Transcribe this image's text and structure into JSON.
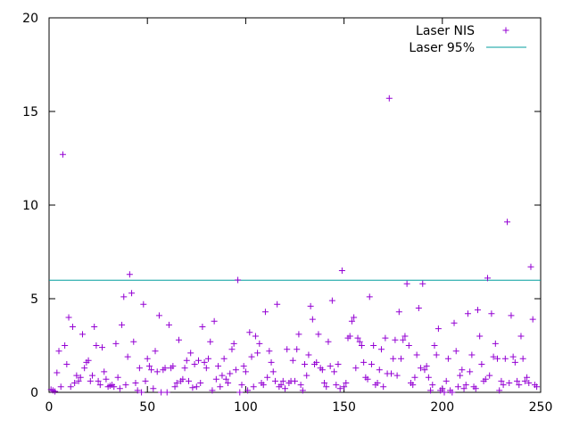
{
  "chart_data": {
    "type": "scatter",
    "title": "",
    "xlabel": "",
    "ylabel": "",
    "xlim": [
      0,
      250
    ],
    "ylim": [
      0,
      20
    ],
    "x_ticks": [
      0,
      50,
      100,
      150,
      200,
      250
    ],
    "y_ticks": [
      0,
      5,
      10,
      15,
      20
    ],
    "grid": false,
    "legend_position": "top-right",
    "series": [
      {
        "name": "Laser NIS",
        "kind": "points",
        "marker": "plus",
        "color": "#9400d3",
        "points": [
          [
            1,
            0.15
          ],
          [
            2,
            0.1
          ],
          [
            3,
            0.05
          ],
          [
            4,
            1.05
          ],
          [
            5,
            2.2
          ],
          [
            6,
            0.3
          ],
          [
            7,
            12.7
          ],
          [
            8,
            2.5
          ],
          [
            9,
            1.5
          ],
          [
            10,
            4.0
          ],
          [
            11,
            0.3
          ],
          [
            12,
            3.5
          ],
          [
            13,
            0.5
          ],
          [
            14,
            0.9
          ],
          [
            15,
            0.6
          ],
          [
            16,
            0.8
          ],
          [
            17,
            3.1
          ],
          [
            18,
            1.3
          ],
          [
            19,
            1.6
          ],
          [
            20,
            1.7
          ],
          [
            21,
            0.6
          ],
          [
            22,
            0.9
          ],
          [
            23,
            3.5
          ],
          [
            24,
            2.5
          ],
          [
            25,
            0.6
          ],
          [
            26,
            0.4
          ],
          [
            27,
            2.4
          ],
          [
            28,
            1.1
          ],
          [
            29,
            0.7
          ],
          [
            30,
            0.3
          ],
          [
            31,
            0.35
          ],
          [
            32,
            0.4
          ],
          [
            33,
            0.3
          ],
          [
            34,
            2.6
          ],
          [
            35,
            0.8
          ],
          [
            36,
            0.2
          ],
          [
            37,
            3.6
          ],
          [
            38,
            5.1
          ],
          [
            39,
            0.4
          ],
          [
            40,
            1.9
          ],
          [
            41,
            6.3
          ],
          [
            42,
            5.3
          ],
          [
            43,
            2.7
          ],
          [
            44,
            0.5
          ],
          [
            45,
            0.1
          ],
          [
            46,
            1.3
          ],
          [
            47,
            0.0
          ],
          [
            48,
            4.7
          ],
          [
            49,
            0.6
          ],
          [
            50,
            1.8
          ],
          [
            51,
            1.4
          ],
          [
            52,
            1.2
          ],
          [
            53,
            0.2
          ],
          [
            54,
            2.2
          ],
          [
            55,
            1.1
          ],
          [
            56,
            4.1
          ],
          [
            57,
            0.0
          ],
          [
            58,
            1.2
          ],
          [
            59,
            1.3
          ],
          [
            60,
            0.0
          ],
          [
            61,
            3.6
          ],
          [
            62,
            1.3
          ],
          [
            63,
            1.4
          ],
          [
            64,
            0.3
          ],
          [
            65,
            0.5
          ],
          [
            66,
            2.8
          ],
          [
            67,
            0.6
          ],
          [
            68,
            0.7
          ],
          [
            69,
            1.3
          ],
          [
            70,
            1.7
          ],
          [
            71,
            0.6
          ],
          [
            72,
            2.1
          ],
          [
            73,
            0.25
          ],
          [
            74,
            1.5
          ],
          [
            75,
            0.3
          ],
          [
            76,
            1.7
          ],
          [
            77,
            0.5
          ],
          [
            78,
            3.5
          ],
          [
            79,
            1.6
          ],
          [
            80,
            1.3
          ],
          [
            81,
            1.8
          ],
          [
            82,
            2.7
          ],
          [
            83,
            0.1
          ],
          [
            84,
            3.8
          ],
          [
            85,
            0.7
          ],
          [
            86,
            1.4
          ],
          [
            87,
            0.3
          ],
          [
            88,
            0.9
          ],
          [
            89,
            1.8
          ],
          [
            90,
            0.7
          ],
          [
            91,
            0.5
          ],
          [
            92,
            1.0
          ],
          [
            93,
            2.3
          ],
          [
            94,
            2.6
          ],
          [
            95,
            1.2
          ],
          [
            96,
            6.0
          ],
          [
            97,
            0.0
          ],
          [
            98,
            0.4
          ],
          [
            99,
            1.4
          ],
          [
            100,
            1.1
          ],
          [
            101,
            0.1
          ],
          [
            102,
            3.2
          ],
          [
            103,
            1.9
          ],
          [
            104,
            0.3
          ],
          [
            105,
            3.0
          ],
          [
            106,
            2.1
          ],
          [
            107,
            2.6
          ],
          [
            108,
            0.5
          ],
          [
            109,
            0.4
          ],
          [
            110,
            4.3
          ],
          [
            111,
            0.8
          ],
          [
            112,
            2.2
          ],
          [
            113,
            1.6
          ],
          [
            114,
            1.1
          ],
          [
            115,
            0.6
          ],
          [
            116,
            4.7
          ],
          [
            117,
            0.3
          ],
          [
            118,
            0.4
          ],
          [
            119,
            0.6
          ],
          [
            120,
            0.2
          ],
          [
            121,
            2.3
          ],
          [
            122,
            0.5
          ],
          [
            123,
            0.6
          ],
          [
            124,
            1.7
          ],
          [
            125,
            0.6
          ],
          [
            126,
            2.3
          ],
          [
            127,
            3.1
          ],
          [
            128,
            0.4
          ],
          [
            129,
            0.1
          ],
          [
            130,
            1.5
          ],
          [
            131,
            0.9
          ],
          [
            132,
            2.0
          ],
          [
            133,
            4.6
          ],
          [
            134,
            3.9
          ],
          [
            135,
            1.5
          ],
          [
            136,
            1.6
          ],
          [
            137,
            3.1
          ],
          [
            138,
            1.3
          ],
          [
            139,
            1.2
          ],
          [
            140,
            0.5
          ],
          [
            141,
            0.3
          ],
          [
            142,
            2.7
          ],
          [
            143,
            1.4
          ],
          [
            144,
            4.9
          ],
          [
            145,
            1.1
          ],
          [
            146,
            0.4
          ],
          [
            147,
            1.5
          ],
          [
            148,
            0.2
          ],
          [
            149,
            6.5
          ],
          [
            150,
            0.3
          ],
          [
            151,
            0.5
          ],
          [
            152,
            2.9
          ],
          [
            153,
            3.0
          ],
          [
            154,
            3.8
          ],
          [
            155,
            4.0
          ],
          [
            156,
            1.3
          ],
          [
            157,
            2.9
          ],
          [
            158,
            2.7
          ],
          [
            159,
            2.5
          ],
          [
            160,
            1.6
          ],
          [
            161,
            0.8
          ],
          [
            162,
            0.7
          ],
          [
            163,
            5.1
          ],
          [
            164,
            1.5
          ],
          [
            165,
            2.5
          ],
          [
            166,
            0.4
          ],
          [
            167,
            0.5
          ],
          [
            168,
            1.2
          ],
          [
            169,
            2.3
          ],
          [
            170,
            0.3
          ],
          [
            171,
            2.9
          ],
          [
            172,
            1.0
          ],
          [
            173,
            15.7
          ],
          [
            174,
            1.0
          ],
          [
            175,
            1.8
          ],
          [
            176,
            2.8
          ],
          [
            177,
            0.9
          ],
          [
            178,
            4.3
          ],
          [
            179,
            1.8
          ],
          [
            180,
            2.8
          ],
          [
            181,
            3.0
          ],
          [
            182,
            5.8
          ],
          [
            183,
            2.5
          ],
          [
            184,
            0.5
          ],
          [
            185,
            0.4
          ],
          [
            186,
            0.8
          ],
          [
            187,
            2.0
          ],
          [
            188,
            4.5
          ],
          [
            189,
            1.3
          ],
          [
            190,
            5.8
          ],
          [
            191,
            1.2
          ],
          [
            192,
            1.4
          ],
          [
            193,
            0.8
          ],
          [
            194,
            0.1
          ],
          [
            195,
            0.4
          ],
          [
            196,
            2.5
          ],
          [
            197,
            2.0
          ],
          [
            198,
            3.4
          ],
          [
            199,
            0.1
          ],
          [
            200,
            0.2
          ],
          [
            201,
            0.0
          ],
          [
            202,
            0.6
          ],
          [
            203,
            1.8
          ],
          [
            204,
            0.1
          ],
          [
            205,
            0.0
          ],
          [
            206,
            3.7
          ],
          [
            207,
            2.2
          ],
          [
            208,
            0.3
          ],
          [
            209,
            0.9
          ],
          [
            210,
            1.2
          ],
          [
            211,
            0.2
          ],
          [
            212,
            0.4
          ],
          [
            213,
            4.2
          ],
          [
            214,
            1.1
          ],
          [
            215,
            2.0
          ],
          [
            216,
            0.3
          ],
          [
            217,
            0.2
          ],
          [
            218,
            4.4
          ],
          [
            219,
            3.0
          ],
          [
            220,
            1.5
          ],
          [
            221,
            0.6
          ],
          [
            222,
            0.7
          ],
          [
            223,
            6.1
          ],
          [
            224,
            0.9
          ],
          [
            225,
            4.2
          ],
          [
            226,
            1.9
          ],
          [
            227,
            2.6
          ],
          [
            228,
            1.8
          ],
          [
            229,
            0.1
          ],
          [
            230,
            0.6
          ],
          [
            231,
            0.4
          ],
          [
            232,
            1.8
          ],
          [
            233,
            9.1
          ],
          [
            234,
            0.5
          ],
          [
            235,
            4.1
          ],
          [
            236,
            1.9
          ],
          [
            237,
            1.6
          ],
          [
            238,
            0.6
          ],
          [
            239,
            0.4
          ],
          [
            240,
            3.0
          ],
          [
            241,
            1.8
          ],
          [
            242,
            0.6
          ],
          [
            243,
            0.8
          ],
          [
            244,
            0.5
          ],
          [
            245,
            6.7
          ],
          [
            246,
            3.9
          ],
          [
            247,
            0.4
          ],
          [
            248,
            0.3
          ]
        ]
      },
      {
        "name": "Laser 95%",
        "kind": "line",
        "color": "#009e9e",
        "points": [
          [
            0,
            5.99
          ],
          [
            250,
            5.99
          ]
        ]
      }
    ]
  }
}
